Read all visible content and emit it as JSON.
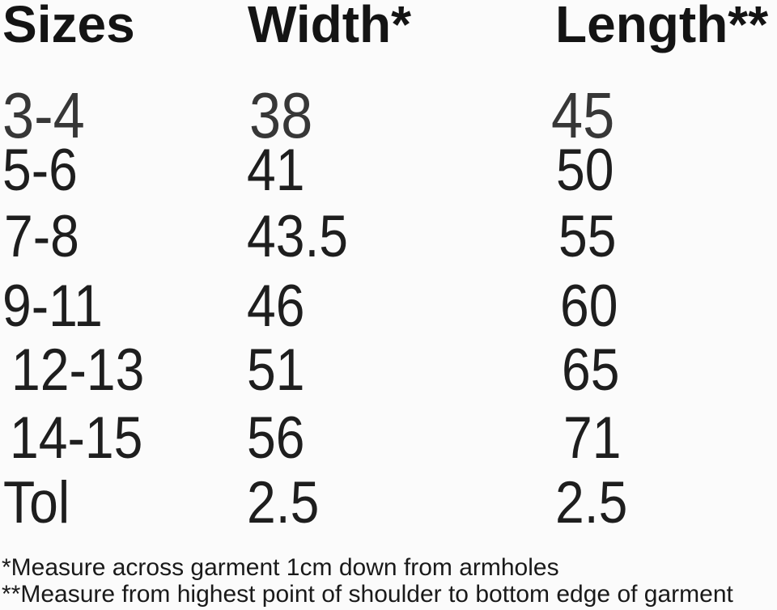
{
  "chart_data": {
    "type": "table",
    "title": "",
    "columns": [
      "Sizes",
      "Width*",
      "Length**"
    ],
    "rows": [
      [
        "3-4",
        "38",
        "45"
      ],
      [
        "5-6",
        "41",
        "50"
      ],
      [
        "7-8",
        "43.5",
        "55"
      ],
      [
        "9-11",
        "46",
        "60"
      ],
      [
        "12-13",
        "51",
        "65"
      ],
      [
        "14-15",
        "56",
        "71"
      ],
      [
        "Tol",
        "2.5",
        "2.5"
      ]
    ],
    "footnotes": [
      "*Measure across garment 1cm down from armholes",
      "**Measure from highest point of shoulder to bottom edge of garment"
    ]
  },
  "colors": {
    "background": "#fbfbfb",
    "header_text": "#141414",
    "body_text": "#1e1e1e",
    "first_row_text": "#373737",
    "footnote_text": "#1a1a1a"
  }
}
